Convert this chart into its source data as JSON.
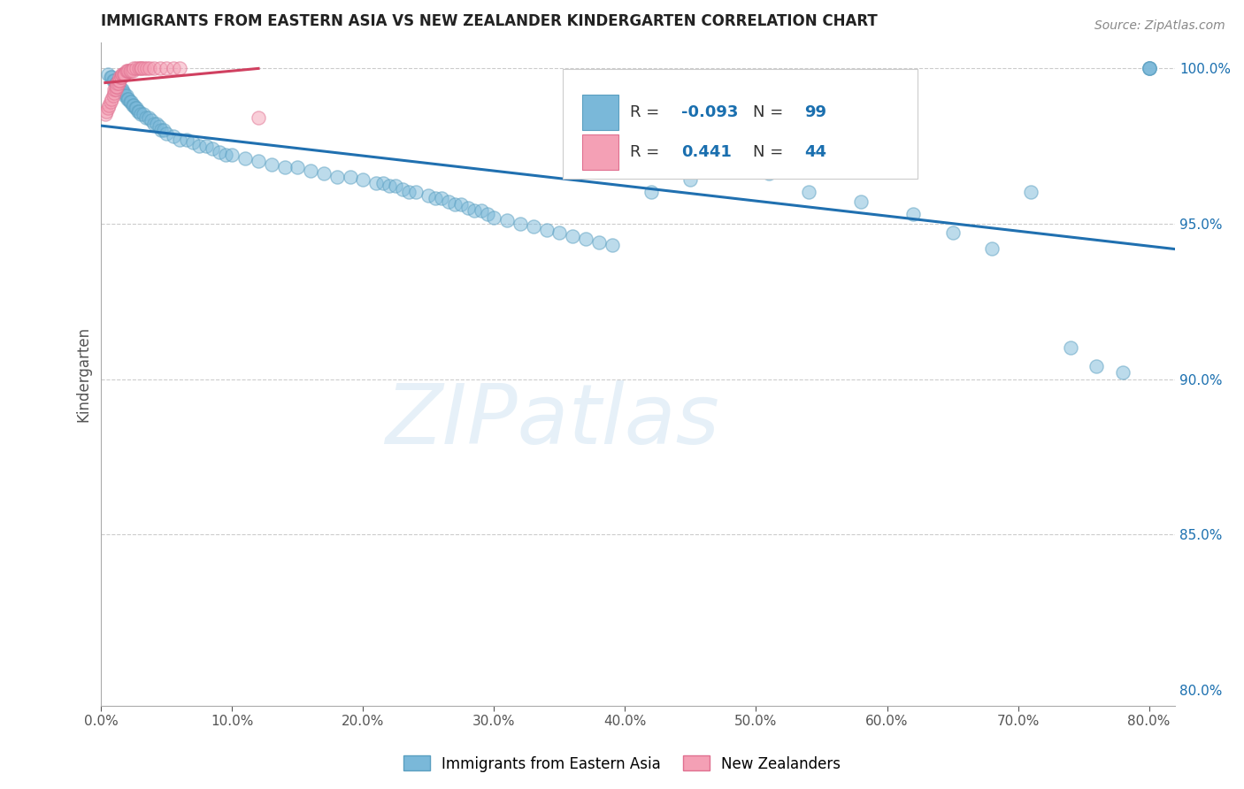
{
  "title": "IMMIGRANTS FROM EASTERN ASIA VS NEW ZEALANDER KINDERGARTEN CORRELATION CHART",
  "source": "Source: ZipAtlas.com",
  "ylabel": "Kindergarten",
  "x_tick_labels": [
    "0.0%",
    "10.0%",
    "20.0%",
    "30.0%",
    "40.0%",
    "50.0%",
    "60.0%",
    "70.0%",
    "80.0%"
  ],
  "y_tick_labels": [
    "80.0%",
    "85.0%",
    "90.0%",
    "95.0%",
    "100.0%"
  ],
  "xlim": [
    0.0,
    0.82
  ],
  "ylim": [
    0.795,
    1.008
  ],
  "legend_label_blue": "Immigrants from Eastern Asia",
  "legend_label_pink": "New Zealanders",
  "R_blue": -0.093,
  "N_blue": 99,
  "R_pink": 0.441,
  "N_pink": 44,
  "blue_color": "#7ab8d9",
  "pink_color": "#f4a0b5",
  "blue_edge": "#5a9fc0",
  "pink_edge": "#e07090",
  "trendline_blue_color": "#2070b0",
  "trendline_pink_color": "#d04060",
  "watermark_text": "ZIPatlas",
  "blue_scatter_x": [
    0.005,
    0.007,
    0.008,
    0.009,
    0.01,
    0.011,
    0.012,
    0.013,
    0.014,
    0.015,
    0.016,
    0.017,
    0.018,
    0.019,
    0.02,
    0.021,
    0.022,
    0.023,
    0.024,
    0.025,
    0.026,
    0.027,
    0.028,
    0.029,
    0.03,
    0.032,
    0.034,
    0.036,
    0.038,
    0.04,
    0.042,
    0.044,
    0.046,
    0.048,
    0.05,
    0.055,
    0.06,
    0.065,
    0.07,
    0.075,
    0.08,
    0.085,
    0.09,
    0.095,
    0.1,
    0.11,
    0.12,
    0.13,
    0.14,
    0.15,
    0.16,
    0.17,
    0.18,
    0.19,
    0.2,
    0.21,
    0.215,
    0.22,
    0.225,
    0.23,
    0.235,
    0.24,
    0.25,
    0.255,
    0.26,
    0.265,
    0.27,
    0.275,
    0.28,
    0.285,
    0.29,
    0.295,
    0.3,
    0.31,
    0.32,
    0.33,
    0.34,
    0.35,
    0.36,
    0.37,
    0.38,
    0.39,
    0.42,
    0.45,
    0.48,
    0.51,
    0.54,
    0.58,
    0.62,
    0.65,
    0.68,
    0.71,
    0.74,
    0.76,
    0.78,
    0.8,
    0.8,
    0.8,
    0.8
  ],
  "blue_scatter_y": [
    0.998,
    0.997,
    0.997,
    0.996,
    0.996,
    0.995,
    0.995,
    0.994,
    0.993,
    0.993,
    0.993,
    0.992,
    0.991,
    0.991,
    0.99,
    0.99,
    0.989,
    0.989,
    0.988,
    0.988,
    0.987,
    0.987,
    0.986,
    0.986,
    0.985,
    0.985,
    0.984,
    0.984,
    0.983,
    0.982,
    0.982,
    0.981,
    0.98,
    0.98,
    0.979,
    0.978,
    0.977,
    0.977,
    0.976,
    0.975,
    0.975,
    0.974,
    0.973,
    0.972,
    0.972,
    0.971,
    0.97,
    0.969,
    0.968,
    0.968,
    0.967,
    0.966,
    0.965,
    0.965,
    0.964,
    0.963,
    0.963,
    0.962,
    0.962,
    0.961,
    0.96,
    0.96,
    0.959,
    0.958,
    0.958,
    0.957,
    0.956,
    0.956,
    0.955,
    0.954,
    0.954,
    0.953,
    0.952,
    0.951,
    0.95,
    0.949,
    0.948,
    0.947,
    0.946,
    0.945,
    0.944,
    0.943,
    0.96,
    0.964,
    0.972,
    0.966,
    0.96,
    0.957,
    0.953,
    0.947,
    0.942,
    0.96,
    0.91,
    0.904,
    0.902,
    1.0,
    1.0,
    1.0,
    1.0
  ],
  "pink_scatter_x": [
    0.003,
    0.004,
    0.005,
    0.006,
    0.007,
    0.008,
    0.009,
    0.01,
    0.01,
    0.011,
    0.011,
    0.012,
    0.012,
    0.013,
    0.013,
    0.014,
    0.014,
    0.015,
    0.015,
    0.016,
    0.016,
    0.017,
    0.017,
    0.018,
    0.019,
    0.02,
    0.021,
    0.022,
    0.023,
    0.024,
    0.025,
    0.027,
    0.029,
    0.03,
    0.031,
    0.033,
    0.035,
    0.037,
    0.04,
    0.045,
    0.05,
    0.055,
    0.06,
    0.12
  ],
  "pink_scatter_y": [
    0.985,
    0.986,
    0.987,
    0.988,
    0.989,
    0.99,
    0.991,
    0.992,
    0.993,
    0.993,
    0.994,
    0.994,
    0.995,
    0.995,
    0.996,
    0.996,
    0.997,
    0.997,
    0.997,
    0.998,
    0.998,
    0.998,
    0.998,
    0.998,
    0.999,
    0.999,
    0.999,
    0.999,
    0.999,
    0.999,
    1.0,
    1.0,
    1.0,
    1.0,
    1.0,
    1.0,
    1.0,
    1.0,
    1.0,
    1.0,
    1.0,
    1.0,
    1.0,
    0.984
  ],
  "gridline_y": [
    0.85,
    0.9,
    0.95,
    1.0
  ],
  "gridline_color": "#cccccc",
  "gridline_style": "--"
}
